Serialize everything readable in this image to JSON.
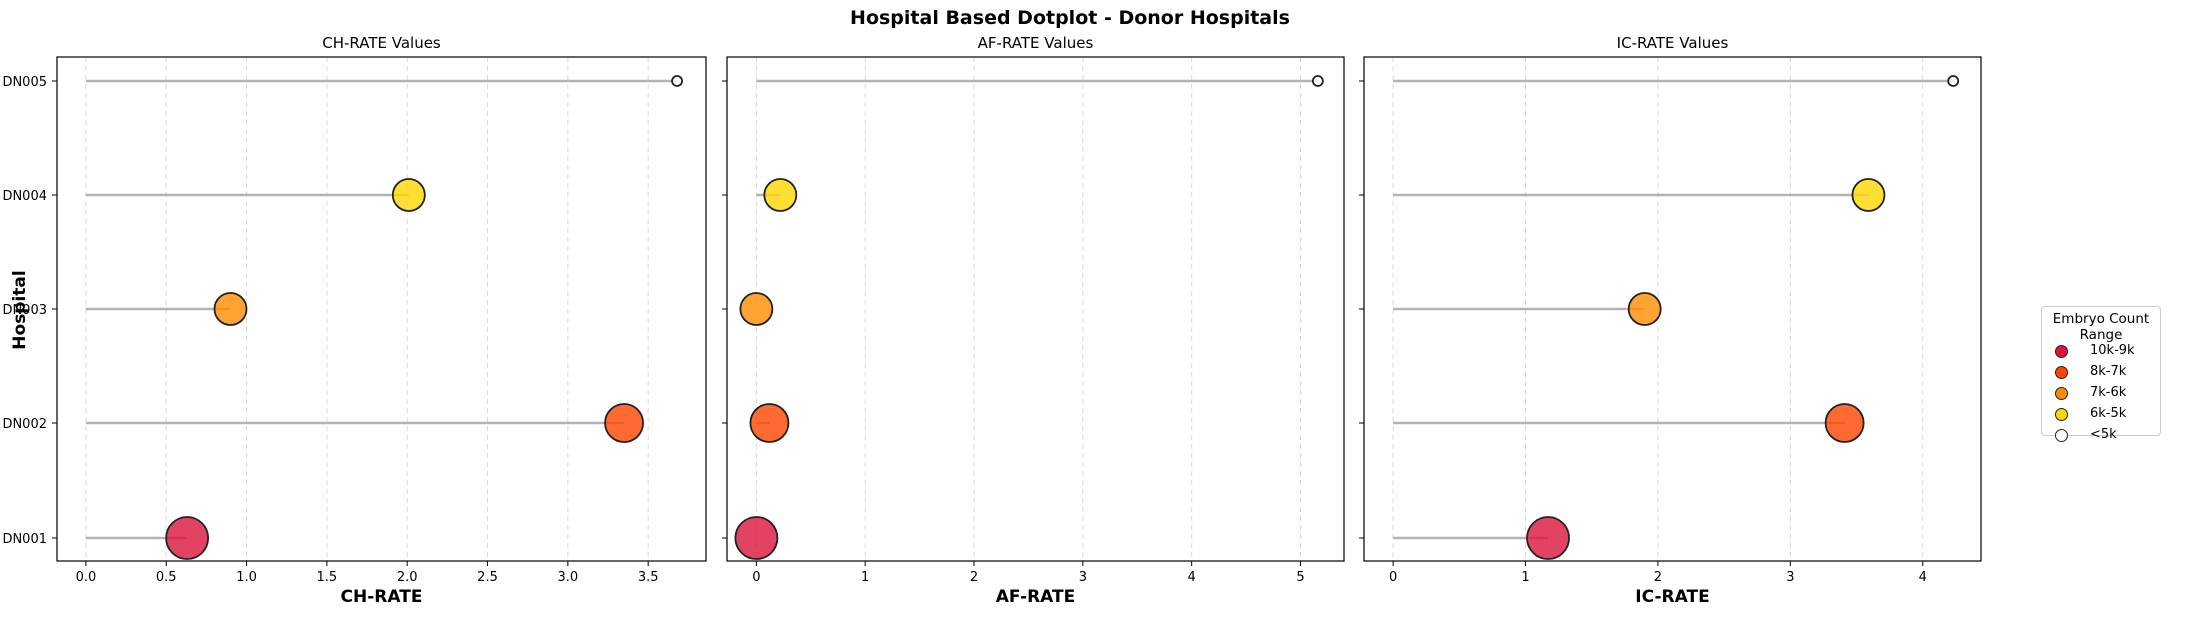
{
  "suptitle": "Hospital Based Dotplot - Donor Hospitals",
  "ylabel": "Hospital",
  "legend": {
    "title": "Embryo Count Range",
    "items": [
      {
        "label": "10k-9k",
        "color": "#dc143c"
      },
      {
        "label": "8k-7k",
        "color": "#ff4500"
      },
      {
        "label": "7k-6k",
        "color": "#ff8c00"
      },
      {
        "label": "6k-5k",
        "color": "#ffd700"
      },
      {
        "label": "<5k",
        "color": "#ffffff"
      }
    ]
  },
  "chart_data": [
    {
      "type": "scatter",
      "title": "CH-RATE Values",
      "xlabel": "CH-RATE",
      "xlim": [
        -0.18,
        3.86
      ],
      "xticks": [
        "0.0",
        "0.5",
        "1.0",
        "1.5",
        "2.0",
        "2.5",
        "3.0",
        "3.5"
      ],
      "categories": [
        "DN005",
        "DN004",
        "DN003",
        "DN002",
        "DN001"
      ],
      "values": [
        3.68,
        2.01,
        0.9,
        3.35,
        0.63
      ],
      "embryo_range": [
        "<5k",
        "6k-5k",
        "7k-6k",
        "8k-7k",
        "10k-9k"
      ],
      "grid": "x, dashed"
    },
    {
      "type": "scatter",
      "title": "AF-RATE Values",
      "xlabel": "AF-RATE",
      "xlim": [
        -0.27,
        5.4
      ],
      "xticks": [
        "0",
        "1",
        "2",
        "3",
        "4",
        "5"
      ],
      "categories": [
        "DN005",
        "DN004",
        "DN003",
        "DN002",
        "DN001"
      ],
      "values": [
        5.16,
        0.22,
        0.0,
        0.12,
        0.0
      ],
      "embryo_range": [
        "<5k",
        "6k-5k",
        "7k-6k",
        "8k-7k",
        "10k-9k"
      ],
      "grid": "x, dashed"
    },
    {
      "type": "scatter",
      "title": "IC-RATE Values",
      "xlabel": "IC-RATE",
      "xlim": [
        -0.22,
        4.44
      ],
      "xticks": [
        "0",
        "1",
        "2",
        "3",
        "4"
      ],
      "categories": [
        "DN005",
        "DN004",
        "DN003",
        "DN002",
        "DN001"
      ],
      "values": [
        4.23,
        3.59,
        1.9,
        3.41,
        1.17
      ],
      "embryo_range": [
        "<5k",
        "6k-5k",
        "7k-6k",
        "8k-7k",
        "10k-9k"
      ],
      "grid": "x, dashed"
    }
  ]
}
